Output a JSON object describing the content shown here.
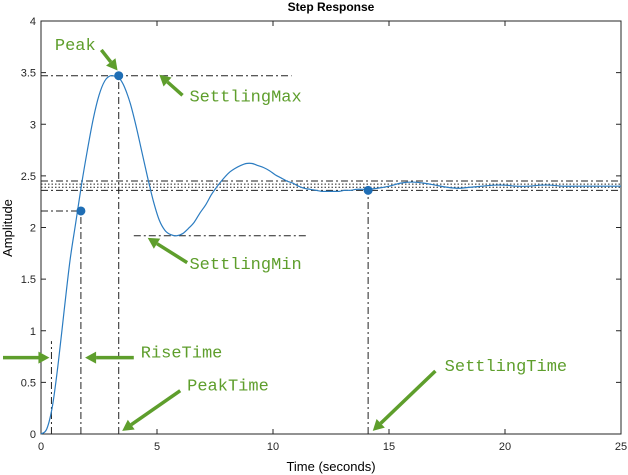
{
  "chart_data": {
    "type": "line",
    "title": "Step Response",
    "xlabel": "Time (seconds)",
    "ylabel": "Amplitude",
    "xlim": [
      0,
      25
    ],
    "ylim": [
      0,
      4
    ],
    "xticks": [
      0,
      5,
      10,
      15,
      20,
      25
    ],
    "xtick_labels": [
      "0",
      "5",
      "10",
      "15",
      "20",
      "25"
    ],
    "yticks": [
      0,
      0.5,
      1,
      1.5,
      2,
      2.5,
      3,
      3.5,
      4
    ],
    "ytick_labels": [
      "0",
      "0.5",
      "1",
      "1.5",
      "2",
      "2.5",
      "3",
      "3.5",
      "4"
    ],
    "grid": false,
    "series": [
      {
        "x": [
          0,
          0.25,
          0.5,
          0.75,
          1,
          1.25,
          1.5,
          1.75,
          2,
          2.25,
          2.5,
          2.75,
          3,
          3.25,
          3.4,
          3.6,
          3.85,
          4.1,
          4.35,
          4.6,
          4.85,
          5.1,
          5.35,
          5.6,
          5.85,
          6.1,
          6.35,
          6.6,
          6.85,
          7.1,
          7.35,
          7.6,
          7.85,
          8.1,
          8.35,
          8.6,
          8.85,
          9.1,
          9.35,
          9.6,
          9.85,
          10.1,
          10.35,
          10.6,
          10.85,
          11.1,
          11.35,
          11.6,
          11.85,
          12.1,
          12.35,
          12.6,
          12.85,
          13.1,
          13.35,
          13.6,
          13.85,
          14.1,
          14.5,
          15,
          15.5,
          16,
          16.5,
          17,
          17.5,
          18,
          18.5,
          19,
          19.5,
          20,
          20.5,
          21,
          21.5,
          22,
          22.5,
          23,
          23.5,
          24,
          24.5,
          25
        ],
        "values": [
          0,
          0.05,
          0.28,
          0.7,
          1.2,
          1.68,
          2.05,
          2.42,
          2.75,
          3.05,
          3.28,
          3.42,
          3.47,
          3.46,
          3.44,
          3.36,
          3.2,
          2.98,
          2.73,
          2.48,
          2.25,
          2.07,
          1.97,
          1.93,
          1.92,
          1.94,
          1.99,
          2.05,
          2.14,
          2.22,
          2.32,
          2.4,
          2.47,
          2.53,
          2.57,
          2.6,
          2.62,
          2.62,
          2.6,
          2.58,
          2.55,
          2.51,
          2.48,
          2.45,
          2.43,
          2.4,
          2.38,
          2.37,
          2.36,
          2.35,
          2.35,
          2.35,
          2.35,
          2.36,
          2.36,
          2.37,
          2.37,
          2.37,
          2.38,
          2.4,
          2.43,
          2.44,
          2.43,
          2.41,
          2.39,
          2.38,
          2.39,
          2.4,
          2.41,
          2.41,
          2.4,
          2.4,
          2.41,
          2.41,
          2.4,
          2.4,
          2.4,
          2.4,
          2.4,
          2.4
        ],
        "color": "#2b7cc1"
      }
    ],
    "markers": [
      {
        "x": 1.72,
        "y": 2.16
      },
      {
        "x": 3.35,
        "y": 3.47
      },
      {
        "x": 14.1,
        "y": 2.36
      }
    ],
    "reference_lines": [
      {
        "orientation": "horizontal",
        "y": 3.47,
        "x_range": [
          0,
          10.8
        ],
        "style": "dash-dot"
      },
      {
        "orientation": "horizontal",
        "y": 2.16,
        "x_range": [
          0,
          1.72
        ],
        "style": "dash-dot"
      },
      {
        "orientation": "horizontal",
        "y": 1.92,
        "x_range": [
          4,
          11.5
        ],
        "style": "dash-dot"
      },
      {
        "orientation": "horizontal",
        "y": 2.45,
        "x_range": [
          0,
          25
        ],
        "style": "dash-dot"
      },
      {
        "orientation": "horizontal",
        "y": 2.36,
        "x_range": [
          0,
          25
        ],
        "style": "dash-dot"
      },
      {
        "orientation": "horizontal",
        "y": 2.42,
        "x_range": [
          0,
          25
        ],
        "style": "dotted"
      },
      {
        "orientation": "horizontal",
        "y": 2.39,
        "x_range": [
          0,
          25
        ],
        "style": "dotted"
      },
      {
        "orientation": "vertical",
        "x": 0.45,
        "y_range": [
          0,
          0.9
        ],
        "style": "dash-dot"
      },
      {
        "orientation": "vertical",
        "x": 1.72,
        "y_range": [
          0,
          2.16
        ],
        "style": "dash-dot"
      },
      {
        "orientation": "vertical",
        "x": 3.35,
        "y_range": [
          0,
          3.47
        ],
        "style": "dash-dot"
      },
      {
        "orientation": "vertical",
        "x": 14.1,
        "y_range": [
          0,
          2.36
        ],
        "style": "dash-dot"
      }
    ],
    "annotations": [
      {
        "text": "Peak",
        "x": 0.6,
        "y": 3.72,
        "arrow_from": [
          2.6,
          3.72
        ],
        "arrow_to": [
          3.3,
          3.52
        ]
      },
      {
        "text": "SettlingMax",
        "x": 6.4,
        "y": 3.22,
        "arrow_from": [
          6.1,
          3.28
        ],
        "arrow_to": [
          5.1,
          3.48
        ]
      },
      {
        "text": "SettlingMin",
        "x": 6.4,
        "y": 1.6,
        "arrow_from": [
          6.3,
          1.66
        ],
        "arrow_to": [
          4.6,
          1.9
        ]
      },
      {
        "text": "RiseTime",
        "x": 4.3,
        "y": 0.74,
        "arrow_from": [
          4.0,
          0.74
        ],
        "arrow_to": [
          1.9,
          0.74
        ]
      },
      {
        "text": "PeakTime",
        "x": 6.3,
        "y": 0.42,
        "arrow_from": [
          6.0,
          0.42
        ],
        "arrow_to": [
          3.5,
          0.03
        ]
      },
      {
        "text": "SettlingTime",
        "x": 17.4,
        "y": 0.61,
        "arrow_from": [
          17.0,
          0.61
        ],
        "arrow_to": [
          14.3,
          0.03
        ]
      }
    ],
    "annotation_color": "#5e9e2c",
    "line_color": "#2b7cc1",
    "marker_color": "#1f6eb5",
    "reference_color": "#222222"
  }
}
